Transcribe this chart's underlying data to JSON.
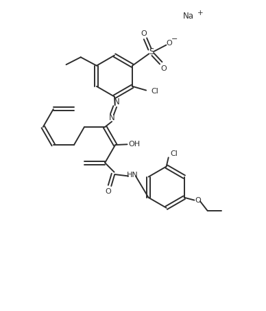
{
  "bg_color": "#ffffff",
  "line_color": "#2d2d2d",
  "line_width": 1.4,
  "fig_width": 3.88,
  "fig_height": 4.53,
  "dpi": 100,
  "xlim": [
    0,
    10
  ],
  "ylim": [
    0,
    11.7
  ]
}
